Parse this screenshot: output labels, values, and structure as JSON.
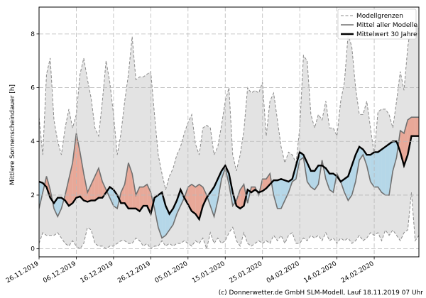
{
  "chart_data": {
    "type": "line",
    "ylabel": "Mittlere Sonnenscheindauer [h]",
    "ylim": [
      -0.3,
      9.0
    ],
    "yticks": [
      0,
      2,
      4,
      6,
      8
    ],
    "date_labels": [
      "26.11.2019",
      "06.12.2019",
      "16.12.2019",
      "26.12.2019",
      "05.01.2020",
      "15.01.2020",
      "25.01.2020",
      "04.02.2020",
      "14.02.2020",
      "24.02.2020"
    ],
    "grid": true,
    "legend_position": "top-right",
    "legend": [
      "Modellgrenzen",
      "Mittel aller Modelle",
      "Mittelwert 30 Jahre"
    ],
    "colors": {
      "band_fill": "#e3e3e3",
      "band_line": "#8a8a8a",
      "mean_line": "#707070",
      "climate_line": "#000000",
      "above_fill": "#e8a898",
      "below_fill": "#b5d7e8"
    },
    "x": [
      "26.11.2019",
      "27.11.2019",
      "28.11.2019",
      "29.11.2019",
      "30.11.2019",
      "01.12.2019",
      "02.12.2019",
      "03.12.2019",
      "04.12.2019",
      "05.12.2019",
      "06.12.2019",
      "07.12.2019",
      "08.12.2019",
      "09.12.2019",
      "10.12.2019",
      "11.12.2019",
      "12.12.2019",
      "13.12.2019",
      "14.12.2019",
      "15.12.2019",
      "16.12.2019",
      "17.12.2019",
      "18.12.2019",
      "19.12.2019",
      "20.12.2019",
      "21.12.2019",
      "22.12.2019",
      "23.12.2019",
      "24.12.2019",
      "25.12.2019",
      "26.12.2019",
      "27.12.2019",
      "28.12.2019",
      "29.12.2019",
      "30.12.2019",
      "31.12.2019",
      "01.01.2020",
      "02.01.2020",
      "03.01.2020",
      "04.01.2020",
      "05.01.2020",
      "06.01.2020",
      "07.01.2020",
      "08.01.2020",
      "09.01.2020",
      "10.01.2020",
      "11.01.2020",
      "12.01.2020",
      "13.01.2020",
      "14.01.2020",
      "15.01.2020",
      "16.01.2020",
      "17.01.2020",
      "18.01.2020",
      "19.01.2020",
      "20.01.2020",
      "21.01.2020",
      "22.01.2020",
      "23.01.2020",
      "24.01.2020",
      "25.01.2020",
      "26.01.2020",
      "27.01.2020",
      "28.01.2020",
      "29.01.2020",
      "30.01.2020",
      "31.01.2020",
      "01.02.2020",
      "02.02.2020",
      "03.02.2020",
      "04.02.2020",
      "05.02.2020",
      "06.02.2020",
      "07.02.2020",
      "08.02.2020",
      "09.02.2020",
      "10.02.2020",
      "11.02.2020",
      "12.02.2020",
      "13.02.2020",
      "14.02.2020",
      "15.02.2020",
      "16.02.2020",
      "17.02.2020",
      "18.02.2020",
      "19.02.2020",
      "20.02.2020",
      "21.02.2020",
      "22.02.2020",
      "23.02.2020",
      "24.02.2020",
      "25.02.2020",
      "26.02.2020",
      "27.02.2020",
      "28.02.2020",
      "29.02.2020",
      "01.03.2020",
      "02.03.2020",
      "03.03.2020",
      "04.03.2020",
      "05.03.2020",
      "06.03.2020",
      "07.03.2020"
    ],
    "series": [
      {
        "name": "Modellgrenzen",
        "role": "upper",
        "values": [
          4.9,
          3.5,
          6.5,
          7.1,
          4.8,
          4.0,
          3.5,
          4.5,
          5.2,
          4.5,
          5.0,
          6.5,
          7.1,
          6.3,
          5.6,
          4.5,
          4.2,
          5.5,
          7.0,
          6.2,
          5.0,
          3.5,
          4.3,
          5.5,
          6.5,
          7.9,
          6.3,
          6.4,
          6.4,
          6.5,
          6.6,
          5.0,
          3.5,
          2.8,
          2.2,
          2.7,
          3.0,
          3.5,
          3.8,
          4.3,
          4.7,
          5.0,
          3.9,
          3.5,
          4.5,
          4.6,
          4.5,
          3.5,
          3.8,
          4.6,
          5.5,
          6.0,
          3.5,
          2.9,
          3.5,
          4.4,
          6.0,
          5.8,
          5.9,
          5.8,
          6.2,
          4.2,
          5.5,
          5.8,
          4.8,
          3.8,
          3.2,
          3.6,
          3.5,
          3.2,
          4.5,
          7.2,
          7.0,
          5.0,
          4.5,
          5.0,
          4.8,
          5.5,
          4.5,
          4.5,
          4.2,
          5.5,
          6.2,
          8.0,
          7.5,
          6.0,
          5.0,
          5.0,
          5.5,
          4.5,
          3.5,
          5.1,
          5.2,
          5.2,
          5.0,
          4.5,
          5.5,
          6.6,
          5.9,
          7.5,
          8.5,
          8.4,
          8.2
        ]
      },
      {
        "name": "",
        "role": "lower",
        "values": [
          0.2,
          0.6,
          0.5,
          0.5,
          0.5,
          0.6,
          0.4,
          0.2,
          0.1,
          0.3,
          0.1,
          0.0,
          0.2,
          0.8,
          0.7,
          0.2,
          0.1,
          0.1,
          0.0,
          0.1,
          0.1,
          0.2,
          0.3,
          0.3,
          0.2,
          0.2,
          0.4,
          0.3,
          0.1,
          0.2,
          0.0,
          0.1,
          0.1,
          0.3,
          0.1,
          0.2,
          0.1,
          0.2,
          0.2,
          0.3,
          0.2,
          0.1,
          0.3,
          0.2,
          0.4,
          0.0,
          0.6,
          0.2,
          0.4,
          0.2,
          0.3,
          0.6,
          0.8,
          0.3,
          0.1,
          0.6,
          0.2,
          0.1,
          0.2,
          0.3,
          0.2,
          0.3,
          0.2,
          0.5,
          0.3,
          0.5,
          0.2,
          0.5,
          0.6,
          0.2,
          0.2,
          0.4,
          0.3,
          0.5,
          0.4,
          0.5,
          0.3,
          0.6,
          0.3,
          0.4,
          0.2,
          0.4,
          0.3,
          0.4,
          0.2,
          0.3,
          0.5,
          0.3,
          0.4,
          0.6,
          0.5,
          0.6,
          0.3,
          0.7,
          0.5,
          0.7,
          0.5,
          0.3,
          0.6,
          0.7,
          2.1,
          0.3,
          0.5
        ]
      },
      {
        "name": "Mittel aller Modelle",
        "role": "mean",
        "values": [
          1.5,
          2.1,
          2.7,
          2.2,
          1.5,
          1.2,
          1.5,
          2.0,
          2.6,
          3.2,
          4.3,
          3.6,
          2.8,
          2.1,
          2.4,
          2.7,
          3.0,
          2.5,
          2.2,
          1.9,
          1.6,
          1.5,
          2.1,
          2.4,
          3.2,
          2.8,
          2.0,
          2.3,
          2.3,
          2.4,
          2.1,
          1.5,
          0.8,
          0.4,
          0.5,
          0.7,
          0.9,
          1.3,
          1.6,
          1.9,
          2.3,
          2.4,
          2.3,
          2.4,
          2.3,
          2.0,
          1.6,
          1.2,
          1.8,
          2.6,
          3.0,
          2.4,
          1.6,
          1.8,
          2.2,
          2.4,
          1.7,
          2.3,
          2.3,
          2.0,
          2.6,
          2.6,
          2.8,
          2.0,
          1.5,
          1.5,
          1.8,
          2.1,
          2.5,
          2.6,
          3.3,
          3.4,
          2.5,
          2.3,
          2.2,
          2.4,
          3.3,
          2.6,
          2.2,
          2.1,
          2.8,
          2.5,
          2.1,
          1.8,
          2.0,
          2.5,
          3.3,
          3.5,
          3.1,
          2.5,
          2.3,
          2.3,
          2.1,
          2.0,
          2.0,
          2.9,
          3.4,
          4.4,
          4.3,
          4.8,
          4.9,
          4.9,
          4.9
        ]
      },
      {
        "name": "Mittelwert 30 Jahre",
        "role": "climate",
        "values": [
          2.5,
          2.45,
          2.3,
          1.9,
          1.7,
          1.9,
          1.9,
          1.8,
          1.6,
          1.7,
          1.9,
          1.95,
          1.8,
          1.75,
          1.8,
          1.8,
          1.9,
          1.9,
          2.1,
          2.3,
          2.2,
          2.0,
          1.7,
          1.7,
          1.5,
          1.5,
          1.5,
          1.4,
          1.6,
          1.6,
          1.3,
          1.9,
          2.0,
          2.1,
          1.6,
          1.3,
          1.5,
          1.8,
          2.2,
          1.9,
          1.65,
          1.4,
          1.3,
          1.1,
          1.6,
          1.9,
          2.1,
          2.3,
          2.6,
          2.9,
          3.1,
          2.8,
          2.1,
          1.6,
          1.5,
          1.6,
          2.2,
          2.1,
          2.2,
          2.1,
          2.15,
          2.25,
          2.4,
          2.55,
          2.55,
          2.6,
          2.55,
          2.5,
          2.6,
          3.1,
          3.6,
          3.5,
          3.2,
          2.9,
          2.9,
          3.1,
          3.1,
          3.0,
          2.8,
          2.8,
          2.7,
          2.5,
          2.6,
          2.7,
          3.1,
          3.5,
          3.8,
          3.7,
          3.5,
          3.5,
          3.6,
          3.6,
          3.7,
          3.8,
          3.9,
          4.0,
          4.0,
          3.6,
          3.1,
          3.5,
          4.2,
          4.2,
          4.2
        ]
      }
    ]
  },
  "credit": "(c) Donnerwetter.de GmbH SLM-Modell, Lauf 18.11.2019 07 Uhr"
}
